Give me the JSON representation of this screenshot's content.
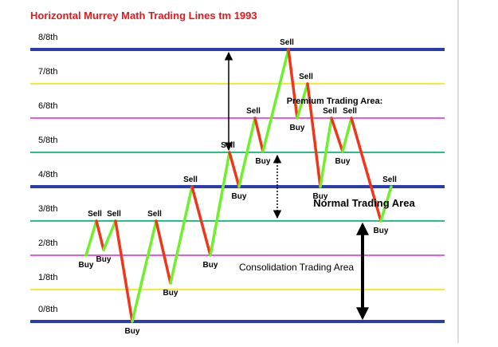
{
  "title": "Horizontal Murrey Math Trading Lines tm 1993",
  "levels": [
    {
      "label": "8/8th",
      "color": "#2b3bb0"
    },
    {
      "label": "7/8th",
      "color": "#f2ea3a"
    },
    {
      "label": "6/8th",
      "color": "#e85ae0"
    },
    {
      "label": "5/8th",
      "color": "#27c08a"
    },
    {
      "label": "4/8th",
      "color": "#2b3bb0"
    },
    {
      "label": "3/8th",
      "color": "#27c08a"
    },
    {
      "label": "2/8th",
      "color": "#e85ae0"
    },
    {
      "label": "1/8th",
      "color": "#f2ea3a"
    },
    {
      "label": "0/8th",
      "color": "#2b3bb0"
    }
  ],
  "points": [
    {
      "label": "Buy"
    },
    {
      "label": "Sell"
    },
    {
      "label": "Buy"
    },
    {
      "label": "Sell"
    },
    {
      "label": "Buy"
    },
    {
      "label": "Sell"
    },
    {
      "label": "Buy"
    },
    {
      "label": "Sell"
    },
    {
      "label": "Buy"
    },
    {
      "label": "Sell"
    },
    {
      "label": "Buy"
    },
    {
      "label": "Sell"
    },
    {
      "label": "Buy"
    },
    {
      "label": "Sell"
    },
    {
      "label": "Buy"
    },
    {
      "label": "Sell"
    },
    {
      "label": "Buy"
    },
    {
      "label": "Sell"
    },
    {
      "label": "Buy"
    },
    {
      "label": "Sell"
    },
    {
      "label": "Buy"
    },
    {
      "label": "Sell"
    }
  ],
  "annotations": {
    "premium": "Premium Trading Area:",
    "normal": "Normal Trading Area",
    "consolidation": "Consolidation Trading Area"
  }
}
